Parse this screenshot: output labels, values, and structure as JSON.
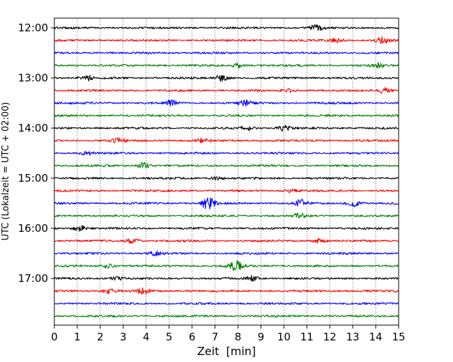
{
  "chart_data": {
    "type": "line",
    "title": "",
    "xlabel": "Zeit  [min]",
    "ylabel": "UTC (Lokalzeit = UTC + 02:00)",
    "xlim": [
      0,
      15
    ],
    "x_ticks": [
      0,
      1,
      2,
      3,
      4,
      5,
      6,
      7,
      8,
      9,
      10,
      11,
      12,
      13,
      14,
      15
    ],
    "y_tick_labels": [
      "12:00",
      "13:00",
      "14:00",
      "15:00",
      "16:00",
      "17:00"
    ],
    "grid": "vertical dotted at each minute",
    "trace_colors": [
      "#000000",
      "#ff0000",
      "#0000ff",
      "#008000"
    ],
    "trace_interval_min": 15,
    "traces": [
      {
        "start": "12:00",
        "color": "#000000"
      },
      {
        "start": "12:15",
        "color": "#ff0000"
      },
      {
        "start": "12:30",
        "color": "#0000ff"
      },
      {
        "start": "12:45",
        "color": "#008000"
      },
      {
        "start": "13:00",
        "color": "#000000"
      },
      {
        "start": "13:15",
        "color": "#ff0000"
      },
      {
        "start": "13:30",
        "color": "#0000ff"
      },
      {
        "start": "13:45",
        "color": "#008000"
      },
      {
        "start": "14:00",
        "color": "#000000"
      },
      {
        "start": "14:15",
        "color": "#ff0000"
      },
      {
        "start": "14:30",
        "color": "#0000ff"
      },
      {
        "start": "14:45",
        "color": "#008000"
      },
      {
        "start": "15:00",
        "color": "#000000"
      },
      {
        "start": "15:15",
        "color": "#ff0000"
      },
      {
        "start": "15:30",
        "color": "#0000ff"
      },
      {
        "start": "15:45",
        "color": "#008000"
      },
      {
        "start": "16:00",
        "color": "#000000"
      },
      {
        "start": "16:15",
        "color": "#ff0000"
      },
      {
        "start": "16:30",
        "color": "#0000ff"
      },
      {
        "start": "16:45",
        "color": "#008000"
      },
      {
        "start": "17:00",
        "color": "#000000"
      },
      {
        "start": "17:15",
        "color": "#ff0000"
      },
      {
        "start": "17:30",
        "color": "#0000ff"
      },
      {
        "start": "17:45",
        "color": "#008000"
      }
    ],
    "bursts": [
      {
        "trace": "12:00",
        "x": 11.4,
        "amp": 3.5
      },
      {
        "trace": "12:15",
        "x": 14.3,
        "amp": 4.5
      },
      {
        "trace": "12:15",
        "x": 12.3,
        "amp": 2.5
      },
      {
        "trace": "12:45",
        "x": 8.0,
        "amp": 3.0
      },
      {
        "trace": "12:45",
        "x": 14.1,
        "amp": 3.0
      },
      {
        "trace": "13:00",
        "x": 1.4,
        "amp": 4.0
      },
      {
        "trace": "13:00",
        "x": 7.3,
        "amp": 4.0
      },
      {
        "trace": "13:15",
        "x": 14.4,
        "amp": 4.0
      },
      {
        "trace": "13:15",
        "x": 10.2,
        "amp": 2.0
      },
      {
        "trace": "13:30",
        "x": 5.1,
        "amp": 3.5
      },
      {
        "trace": "13:30",
        "x": 8.3,
        "amp": 4.0
      },
      {
        "trace": "14:00",
        "x": 8.4,
        "amp": 3.0
      },
      {
        "trace": "14:00",
        "x": 10.0,
        "amp": 3.5
      },
      {
        "trace": "14:15",
        "x": 2.8,
        "amp": 3.0
      },
      {
        "trace": "14:15",
        "x": 6.5,
        "amp": 3.0
      },
      {
        "trace": "14:30",
        "x": 1.4,
        "amp": 2.5
      },
      {
        "trace": "14:45",
        "x": 3.9,
        "amp": 4.0
      },
      {
        "trace": "15:00",
        "x": 7.1,
        "amp": 2.0
      },
      {
        "trace": "15:15",
        "x": 10.3,
        "amp": 2.0
      },
      {
        "trace": "15:30",
        "x": 6.7,
        "amp": 9.0
      },
      {
        "trace": "15:30",
        "x": 10.8,
        "amp": 5.0
      },
      {
        "trace": "15:30",
        "x": 13.0,
        "amp": 5.0
      },
      {
        "trace": "15:45",
        "x": 10.7,
        "amp": 3.0
      },
      {
        "trace": "16:00",
        "x": 1.1,
        "amp": 4.0
      },
      {
        "trace": "16:15",
        "x": 3.4,
        "amp": 3.5
      },
      {
        "trace": "16:15",
        "x": 11.5,
        "amp": 2.5
      },
      {
        "trace": "16:30",
        "x": 4.4,
        "amp": 2.5
      },
      {
        "trace": "16:45",
        "x": 7.9,
        "amp": 6.5
      },
      {
        "trace": "16:45",
        "x": 2.3,
        "amp": 2.5
      },
      {
        "trace": "17:00",
        "x": 2.7,
        "amp": 2.5
      },
      {
        "trace": "17:00",
        "x": 8.6,
        "amp": 3.5
      },
      {
        "trace": "17:15",
        "x": 3.9,
        "amp": 4.0
      },
      {
        "trace": "17:15",
        "x": 2.4,
        "amp": 3.0
      }
    ]
  }
}
